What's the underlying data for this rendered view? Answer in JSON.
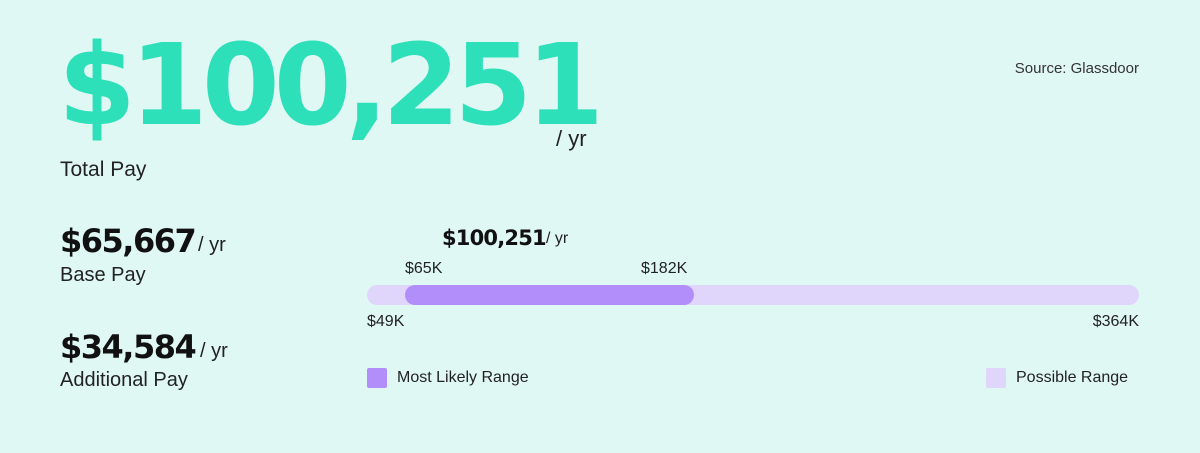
{
  "header": {
    "total_amount": "$100,251",
    "total_unit": "/ yr",
    "total_label": "Total Pay",
    "source": "Source: Glassdoor"
  },
  "stats": {
    "base": {
      "amount": "$65,667",
      "unit": "/ yr",
      "label": "Base Pay"
    },
    "additional": {
      "amount": "$34,584",
      "unit": "/ yr",
      "label": "Additional Pay"
    }
  },
  "colors": {
    "background": "#e0f8f4",
    "accent": "#2ee0b9",
    "likely_range": "#b18ef9",
    "possible_range": "#e0d6fb"
  },
  "chart_data": {
    "type": "range-bar",
    "headline": {
      "amount": "$100,251",
      "unit": "/ yr"
    },
    "possible_range": {
      "min": 49000,
      "max": 364000,
      "min_label": "$49K",
      "max_label": "$364K"
    },
    "likely_range": {
      "min": 65000,
      "max": 182000,
      "min_label": "$65K",
      "max_label": "$182K"
    },
    "legend": [
      {
        "name": "Most Likely Range",
        "color": "#b18ef9"
      },
      {
        "name": "Possible Range",
        "color": "#e0d6fb"
      }
    ]
  }
}
